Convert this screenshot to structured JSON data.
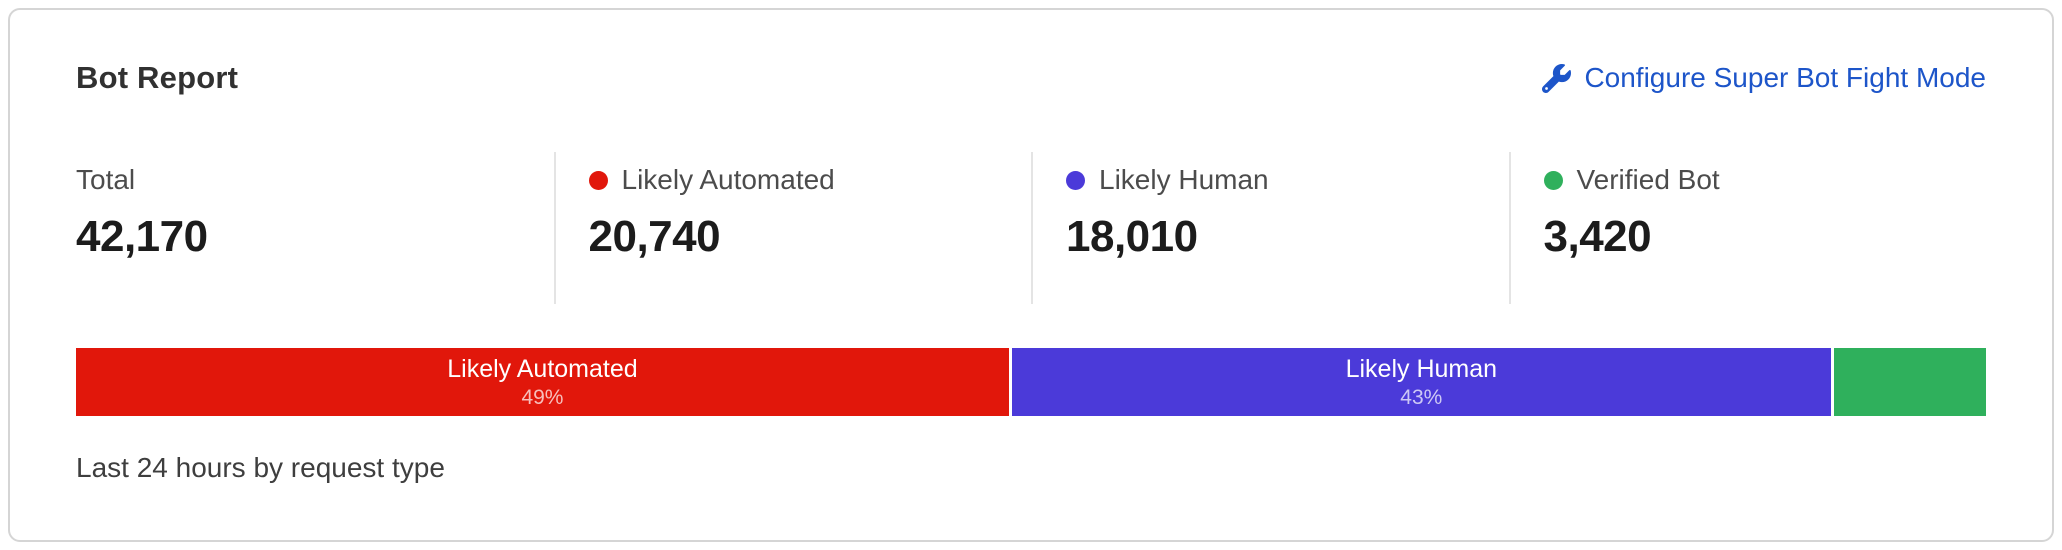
{
  "card": {
    "title": "Bot Report",
    "configure_link": "Configure Super Bot Fight Mode",
    "footer": "Last 24 hours by request type"
  },
  "stats": [
    {
      "label": "Total",
      "value": "42,170"
    },
    {
      "label": "Likely Automated",
      "value": "20,740"
    },
    {
      "label": "Likely Human",
      "value": "18,010"
    },
    {
      "label": "Verified Bot",
      "value": "3,420"
    }
  ],
  "colors": {
    "likely_automated": "#e1170b",
    "likely_human": "#4b3ad9",
    "verified_bot": "#2fb05c",
    "link_blue": "#1d55c9"
  },
  "chart_data": {
    "type": "bar",
    "orientation": "horizontal-stacked",
    "title": "Bot Report",
    "subtitle": "Last 24 hours by request type",
    "total": 42170,
    "segments": [
      {
        "name": "Likely Automated",
        "value": 20740,
        "percent": 49,
        "percent_label": "49%",
        "color": "#e1170b"
      },
      {
        "name": "Likely Human",
        "value": 18010,
        "percent": 43,
        "percent_label": "43%",
        "color": "#4b3ad9"
      },
      {
        "name": "Verified Bot",
        "value": 3420,
        "percent": 8,
        "percent_label": "",
        "color": "#2fb05c"
      }
    ],
    "legend_position": "top",
    "xlim": [
      0,
      100
    ]
  }
}
